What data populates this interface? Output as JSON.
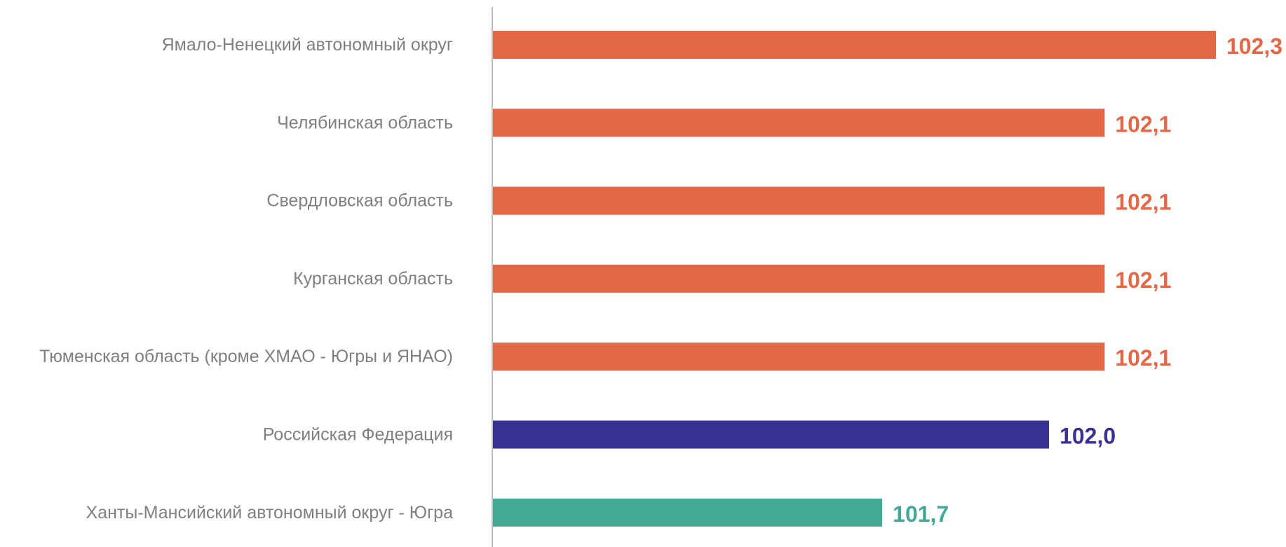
{
  "chart_data": {
    "type": "bar",
    "orientation": "horizontal",
    "categories": [
      "Ямало-Ненецкий автономный округ",
      "Челябинская область",
      "Свердловская область",
      "Курганская область",
      "Тюменская область (кроме ХМАО - Югры и ЯНАО)",
      "Российская Федерация",
      "Ханты-Мансийский автономный округ - Югра"
    ],
    "values": [
      102.3,
      102.1,
      102.1,
      102.1,
      102.1,
      102.0,
      101.7
    ],
    "value_labels": [
      "102,3",
      "102,1",
      "102,1",
      "102,1",
      "102,1",
      "102,0",
      "101,7"
    ],
    "colors": [
      "#e36848",
      "#e36848",
      "#e36848",
      "#e36848",
      "#e36848",
      "#393293",
      "#44a896"
    ],
    "title": "",
    "xlabel": "",
    "ylabel": "",
    "grid": false,
    "legend": "none"
  }
}
